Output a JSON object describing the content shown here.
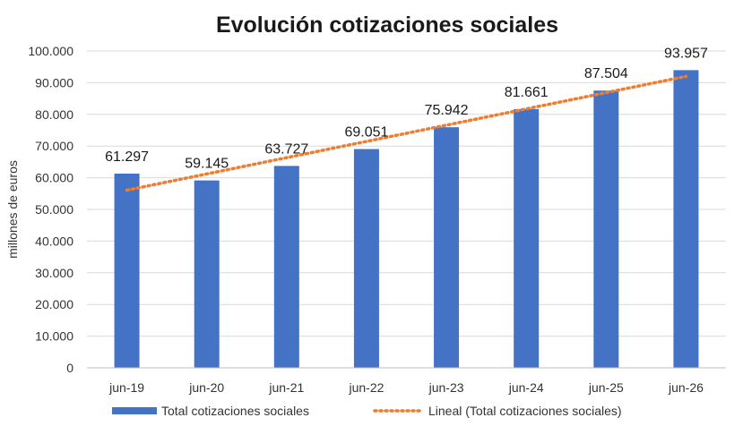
{
  "colors": {
    "bar": "#4472C4",
    "trend": "#ED7D31"
  },
  "chart_data": {
    "type": "bar",
    "title": "Evolución cotizaciones sociales",
    "xlabel": "",
    "ylabel": "millones de euros",
    "ylim": [
      0,
      100000
    ],
    "y_ticks": [
      "0",
      "10.000",
      "20.000",
      "30.000",
      "40.000",
      "50.000",
      "60.000",
      "70.000",
      "80.000",
      "90.000",
      "100.000"
    ],
    "categories": [
      "jun-19",
      "jun-20",
      "jun-21",
      "jun-22",
      "jun-23",
      "jun-24",
      "jun-25",
      "jun-26"
    ],
    "series": [
      {
        "name": "Total cotizaciones sociales",
        "values": [
          61297,
          59145,
          63727,
          69051,
          75942,
          81661,
          87504,
          93957
        ],
        "labels": [
          "61.297",
          "59.145",
          "63.727",
          "69.051",
          "75.942",
          "81.661",
          "87.504",
          "93.957"
        ]
      }
    ],
    "trendline": {
      "name": "Lineal (Total cotizaciones sociales)",
      "type": "linear"
    },
    "grid": true,
    "legend": "bottom"
  }
}
